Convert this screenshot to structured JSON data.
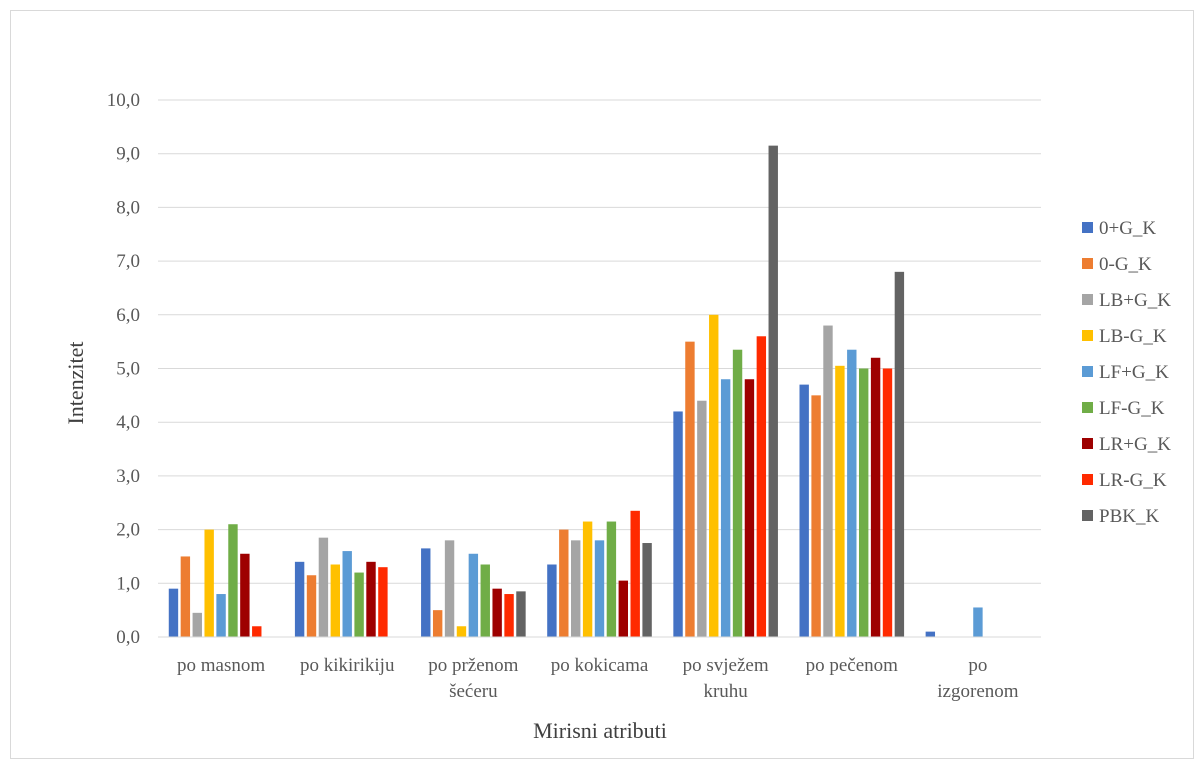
{
  "chart_data": {
    "type": "bar",
    "title": "",
    "xlabel": "Mirisni atributi",
    "ylabel": "Intenzitet",
    "ylim": [
      0,
      10
    ],
    "ytick_step": 1,
    "ytick_labels": [
      "0,0",
      "1,0",
      "2,0",
      "3,0",
      "4,0",
      "5,0",
      "6,0",
      "7,0",
      "8,0",
      "9,0",
      "10,0"
    ],
    "grid": true,
    "legend_position": "right",
    "categories": [
      [
        "po masnom"
      ],
      [
        "po kikirikiju"
      ],
      [
        "po prženom",
        "šećeru"
      ],
      [
        "po kokicama"
      ],
      [
        "po svježem",
        "kruhu"
      ],
      [
        "po pečenom"
      ],
      [
        "po",
        "izgorenom"
      ]
    ],
    "series": [
      {
        "name": "0+G_K",
        "color": "#4472c4",
        "values": [
          0.9,
          1.4,
          1.65,
          1.35,
          4.2,
          4.7,
          0.1
        ]
      },
      {
        "name": "0-G_K",
        "color": "#ed7d31",
        "values": [
          1.5,
          1.15,
          0.5,
          2.0,
          5.5,
          4.5,
          0
        ]
      },
      {
        "name": "LB+G_K",
        "color": "#a5a5a5",
        "values": [
          0.45,
          1.85,
          1.8,
          1.8,
          4.4,
          5.8,
          0
        ]
      },
      {
        "name": "LB-G_K",
        "color": "#ffc000",
        "values": [
          2.0,
          1.35,
          0.2,
          2.15,
          6.0,
          5.05,
          0
        ]
      },
      {
        "name": "LF+G_K",
        "color": "#5b9bd5",
        "values": [
          0.8,
          1.6,
          1.55,
          1.8,
          4.8,
          5.35,
          0.55
        ]
      },
      {
        "name": "LF-G_K",
        "color": "#70ad47",
        "values": [
          2.1,
          1.2,
          1.35,
          2.15,
          5.35,
          5.0,
          0
        ]
      },
      {
        "name": "LR+G_K",
        "color": "#9e0000",
        "values": [
          1.55,
          1.4,
          0.9,
          1.05,
          4.8,
          5.2,
          0
        ]
      },
      {
        "name": "LR-G_K",
        "color": "#ff2a00",
        "values": [
          0.2,
          1.3,
          0.8,
          2.35,
          5.6,
          5.0,
          0
        ]
      },
      {
        "name": "PBK_K",
        "color": "#636363",
        "values": [
          0,
          0,
          0.85,
          1.75,
          9.15,
          6.8,
          0
        ]
      }
    ]
  }
}
